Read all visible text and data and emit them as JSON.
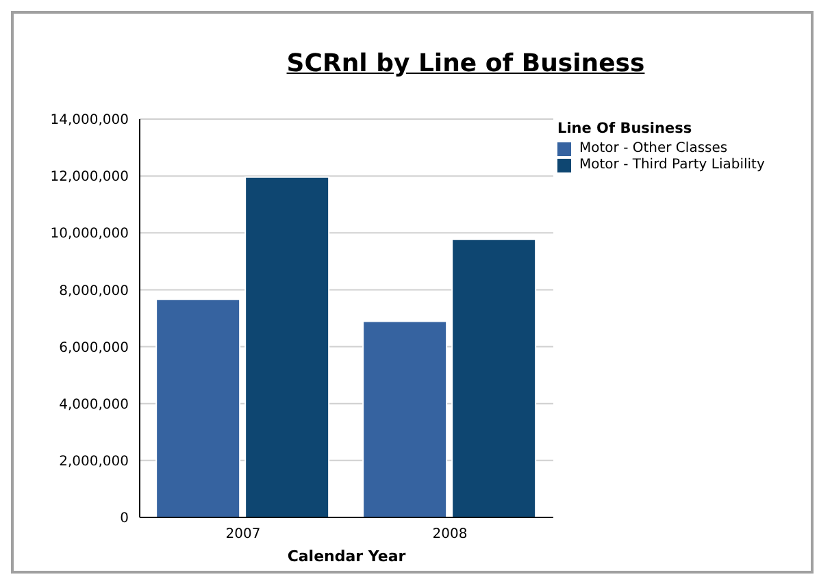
{
  "chart_data": {
    "type": "bar",
    "title": "SCRnl by Line of Business",
    "xlabel": "Calendar Year",
    "legend_title": "Line Of Business",
    "categories": [
      "2007",
      "2008"
    ],
    "series": [
      {
        "name": "Motor - Other Classes",
        "color": "#3663a0",
        "values": [
          7670000,
          6890000
        ]
      },
      {
        "name": "Motor - Third Party Liability",
        "color": "#0e4671",
        "values": [
          11960000,
          9770000
        ]
      }
    ],
    "ylim": [
      0,
      14000000
    ],
    "yticks": [
      0,
      {
        "value": 2000000,
        "label": "2,000,000"
      },
      {
        "value": 4000000,
        "label": "4,000,000"
      },
      {
        "value": 6000000,
        "label": "6,000,000"
      },
      {
        "value": 8000000,
        "label": "8,000,000"
      },
      {
        "value": 10000000,
        "label": "10,000,000"
      },
      {
        "value": 12000000,
        "label": "12,000,000"
      },
      {
        "value": 14000000,
        "label": "14,000,000"
      }
    ],
    "grid": "y",
    "legend": "top right"
  }
}
